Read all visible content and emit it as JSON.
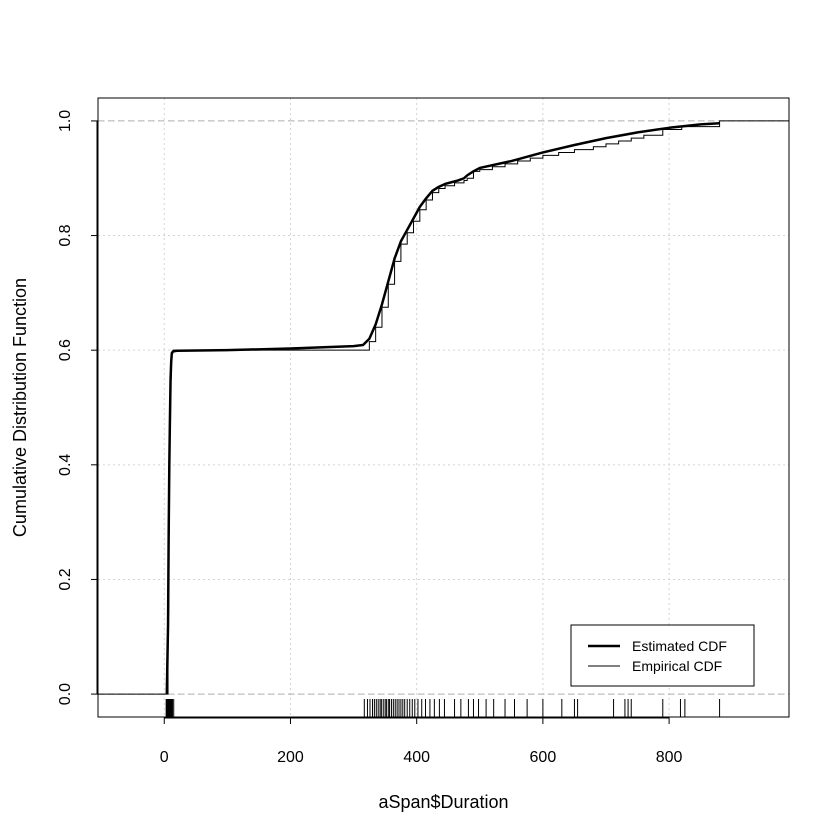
{
  "chart_data": {
    "type": "line",
    "title": "",
    "xlabel": "aSpan$Duration",
    "ylabel": "Cumulative Distribution Function",
    "xlim": [
      -105,
      990
    ],
    "ylim": [
      -0.04,
      1.04
    ],
    "x_ticks": [
      0,
      200,
      400,
      600,
      800
    ],
    "x_tick_labels": [
      "0",
      "200",
      "400",
      "600",
      "800"
    ],
    "y_ticks": [
      0.0,
      0.2,
      0.4,
      0.6,
      0.8,
      1.0
    ],
    "y_tick_labels": [
      "0.0",
      "0.2",
      "0.4",
      "0.6",
      "0.8",
      "1.0"
    ],
    "grid": true,
    "legend_position": "bottom-right",
    "reference_lines_y": [
      0,
      1
    ],
    "series": [
      {
        "name": "Estimated CDF",
        "style": "thick",
        "x": [
          4,
          6,
          7,
          8,
          9,
          10,
          11,
          12,
          14,
          20,
          100,
          200,
          300,
          315,
          325,
          335,
          345,
          355,
          365,
          375,
          385,
          395,
          405,
          415,
          425,
          435,
          445,
          455,
          465,
          475,
          480,
          490,
          500,
          550,
          600,
          650,
          700,
          750,
          800,
          850,
          880
        ],
        "y": [
          0.0,
          0.12,
          0.28,
          0.4,
          0.48,
          0.55,
          0.58,
          0.595,
          0.598,
          0.599,
          0.6,
          0.603,
          0.607,
          0.609,
          0.62,
          0.645,
          0.68,
          0.72,
          0.76,
          0.79,
          0.81,
          0.83,
          0.85,
          0.865,
          0.878,
          0.885,
          0.89,
          0.893,
          0.896,
          0.9,
          0.905,
          0.912,
          0.918,
          0.93,
          0.945,
          0.958,
          0.97,
          0.98,
          0.988,
          0.994,
          0.996
        ]
      },
      {
        "name": "Empirical CDF",
        "style": "step",
        "x": [
          4,
          6,
          7,
          8,
          9,
          10,
          11,
          12,
          14,
          316,
          325,
          335,
          345,
          355,
          365,
          375,
          385,
          395,
          405,
          415,
          425,
          435,
          445,
          460,
          475,
          480,
          490,
          500,
          520,
          540,
          560,
          580,
          600,
          625,
          650,
          680,
          700,
          720,
          740,
          760,
          790,
          820,
          880
        ],
        "y": [
          0.0,
          0.14,
          0.28,
          0.4,
          0.48,
          0.55,
          0.58,
          0.595,
          0.6,
          0.6,
          0.615,
          0.64,
          0.675,
          0.715,
          0.755,
          0.785,
          0.805,
          0.825,
          0.845,
          0.862,
          0.875,
          0.882,
          0.887,
          0.892,
          0.896,
          0.9,
          0.912,
          0.915,
          0.92,
          0.925,
          0.93,
          0.935,
          0.94,
          0.945,
          0.95,
          0.955,
          0.96,
          0.965,
          0.97,
          0.975,
          0.985,
          0.99,
          1.0
        ]
      }
    ],
    "rug": [
      3,
      4,
      5,
      6,
      7,
      8,
      9,
      10,
      11,
      12,
      13,
      15,
      317,
      322,
      326,
      330,
      333,
      336,
      339,
      342,
      344,
      347,
      350,
      352,
      355,
      357,
      360,
      363,
      366,
      369,
      372,
      375,
      378,
      381,
      385,
      389,
      393,
      397,
      402,
      408,
      414,
      421,
      428,
      436,
      444,
      460,
      470,
      482,
      490,
      498,
      510,
      522,
      540,
      555,
      575,
      600,
      630,
      650,
      655,
      712,
      730,
      735,
      740,
      790,
      818,
      825,
      880
    ]
  }
}
